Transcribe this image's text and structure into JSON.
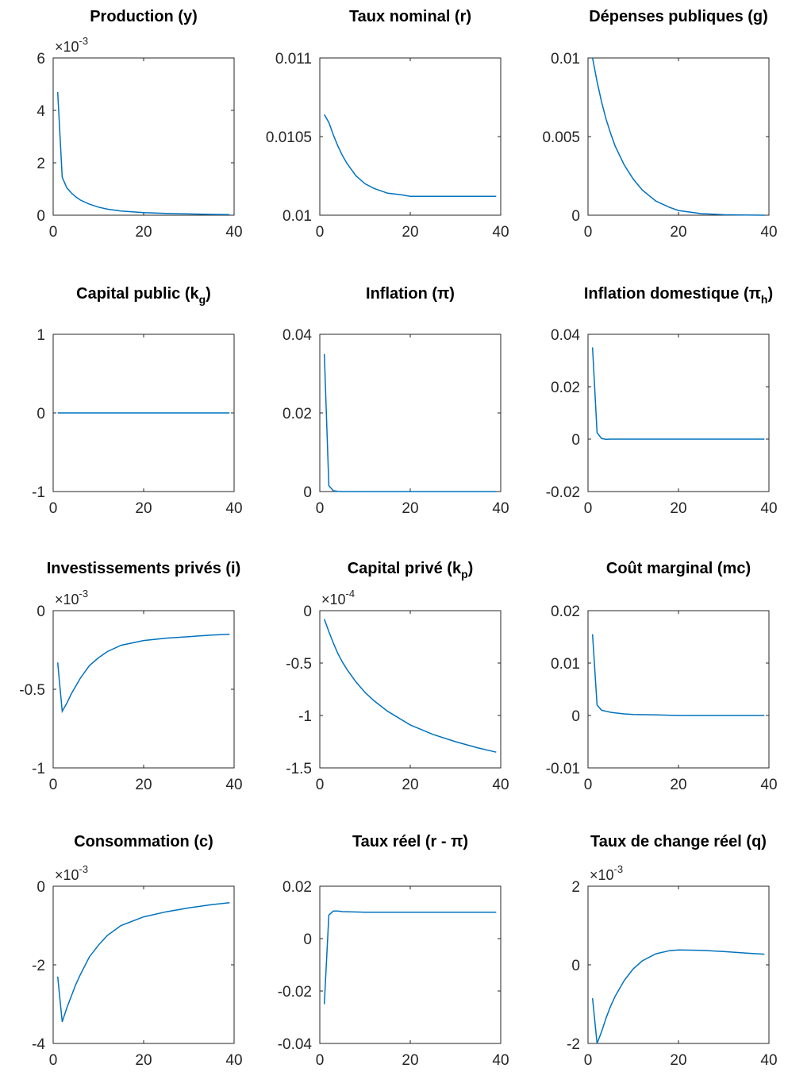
{
  "chart_data": [
    {
      "type": "line",
      "title": "Production (y)",
      "title_main": "Production (y)",
      "title_sub": "",
      "title_tail": "",
      "multiplier": {
        "base": "10",
        "exp": "-3"
      },
      "xlim": [
        0,
        40
      ],
      "ylim": [
        0,
        6
      ],
      "xticks": [
        0,
        20,
        40
      ],
      "yticks": [
        0,
        2,
        4,
        6
      ],
      "xtick_labels": [
        "0",
        "20",
        "40"
      ],
      "ytick_labels": [
        "0",
        "2",
        "4",
        "6"
      ],
      "series": [
        {
          "color": "#0072BD",
          "x": [
            1,
            2,
            3,
            4,
            5,
            6,
            8,
            10,
            12,
            15,
            20,
            25,
            30,
            35,
            39
          ],
          "y": [
            4.7,
            1.45,
            1.05,
            0.85,
            0.7,
            0.58,
            0.42,
            0.31,
            0.23,
            0.16,
            0.1,
            0.07,
            0.05,
            0.03,
            0.02
          ]
        }
      ]
    },
    {
      "type": "line",
      "title": "Taux nominal (r)",
      "title_main": "Taux nominal (r)",
      "title_sub": "",
      "title_tail": "",
      "multiplier": null,
      "xlim": [
        0,
        40
      ],
      "ylim": [
        0.01,
        0.011
      ],
      "xticks": [
        0,
        20,
        40
      ],
      "yticks": [
        0.01,
        0.0105,
        0.011
      ],
      "xtick_labels": [
        "0",
        "20",
        "40"
      ],
      "ytick_labels": [
        "0.01",
        "0.0105",
        "0.011"
      ],
      "series": [
        {
          "color": "#0072BD",
          "x": [
            1,
            2,
            3,
            4,
            5,
            6,
            7,
            8,
            10,
            12,
            15,
            18,
            20,
            25,
            30,
            35,
            39
          ],
          "y": [
            0.01064,
            0.01059,
            0.01051,
            0.01044,
            0.01038,
            0.01033,
            0.01029,
            0.01025,
            0.0102,
            0.01017,
            0.01014,
            0.01013,
            0.01012,
            0.01012,
            0.01012,
            0.01012,
            0.01012
          ]
        }
      ]
    },
    {
      "type": "line",
      "title": "Dépenses publiques (g)",
      "title_main": "Dépenses publiques (g)",
      "title_sub": "",
      "title_tail": "",
      "multiplier": null,
      "xlim": [
        0,
        40
      ],
      "ylim": [
        0,
        0.01
      ],
      "xticks": [
        0,
        20,
        40
      ],
      "yticks": [
        0,
        0.005,
        0.01
      ],
      "xtick_labels": [
        "0",
        "20",
        "40"
      ],
      "ytick_labels": [
        "0",
        "0.005",
        "0.01"
      ],
      "series": [
        {
          "color": "#0072BD",
          "x": [
            1,
            2,
            3,
            4,
            5,
            6,
            8,
            10,
            12,
            15,
            18,
            20,
            25,
            30,
            35,
            39
          ],
          "y": [
            0.01,
            0.0085,
            0.0072,
            0.0061,
            0.0052,
            0.0044,
            0.0032,
            0.0023,
            0.0016,
            0.0009,
            0.0005,
            0.0003,
            0.0001,
            3e-05,
            1e-05,
            0
          ]
        }
      ]
    },
    {
      "type": "line",
      "title": "Capital public (kg)",
      "title_main": "Capital public (k",
      "title_sub": "g",
      "title_tail": ")",
      "multiplier": null,
      "xlim": [
        0,
        40
      ],
      "ylim": [
        -1,
        1
      ],
      "xticks": [
        0,
        20,
        40
      ],
      "yticks": [
        -1,
        0,
        1
      ],
      "xtick_labels": [
        "0",
        "20",
        "40"
      ],
      "ytick_labels": [
        "-1",
        "0",
        "1"
      ],
      "series": [
        {
          "color": "#0072BD",
          "x": [
            1,
            39
          ],
          "y": [
            0,
            0
          ]
        }
      ]
    },
    {
      "type": "line",
      "title": "Inflation (π)",
      "title_main": "Inflation (π)",
      "title_sub": "",
      "title_tail": "",
      "multiplier": null,
      "xlim": [
        0,
        40
      ],
      "ylim": [
        0,
        0.04
      ],
      "xticks": [
        0,
        20,
        40
      ],
      "yticks": [
        0,
        0.02,
        0.04
      ],
      "xtick_labels": [
        "0",
        "20",
        "40"
      ],
      "ytick_labels": [
        "0",
        "0.02",
        "0.04"
      ],
      "series": [
        {
          "color": "#0072BD",
          "x": [
            1,
            2,
            3,
            4,
            5,
            10,
            20,
            30,
            39
          ],
          "y": [
            0.035,
            0.0015,
            0.0002,
            5e-05,
            0,
            0,
            0,
            0,
            0
          ]
        }
      ]
    },
    {
      "type": "line",
      "title": "Inflation domestique (πh)",
      "title_main": "Inflation domestique (π",
      "title_sub": "h",
      "title_tail": ")",
      "multiplier": null,
      "xlim": [
        0,
        40
      ],
      "ylim": [
        -0.02,
        0.04
      ],
      "xticks": [
        0,
        20,
        40
      ],
      "yticks": [
        -0.02,
        0,
        0.02,
        0.04
      ],
      "xtick_labels": [
        "0",
        "20",
        "40"
      ],
      "ytick_labels": [
        "-0.02",
        "0",
        "0.02",
        "0.04"
      ],
      "series": [
        {
          "color": "#0072BD",
          "x": [
            1,
            2,
            3,
            4,
            5,
            10,
            20,
            30,
            39
          ],
          "y": [
            0.035,
            0.0025,
            0.0002,
            -0.0001,
            0,
            0,
            0,
            0,
            0
          ]
        }
      ]
    },
    {
      "type": "line",
      "title": "Investissements privés (i)",
      "title_main": "Investissements privés (i)",
      "title_sub": "",
      "title_tail": "",
      "multiplier": {
        "base": "10",
        "exp": "-3"
      },
      "xlim": [
        0,
        40
      ],
      "ylim": [
        -1,
        0
      ],
      "xticks": [
        0,
        20,
        40
      ],
      "yticks": [
        -1,
        -0.5,
        0
      ],
      "xtick_labels": [
        "0",
        "20",
        "40"
      ],
      "ytick_labels": [
        "-1",
        "-0.5",
        "0"
      ],
      "series": [
        {
          "color": "#0072BD",
          "x": [
            1,
            2,
            3,
            4,
            5,
            6,
            8,
            10,
            12,
            15,
            20,
            25,
            30,
            35,
            39
          ],
          "y": [
            -0.33,
            -0.64,
            -0.59,
            -0.53,
            -0.48,
            -0.43,
            -0.35,
            -0.3,
            -0.26,
            -0.22,
            -0.19,
            -0.175,
            -0.165,
            -0.155,
            -0.15
          ]
        }
      ]
    },
    {
      "type": "line",
      "title": "Capital privé (kp)",
      "title_main": "Capital privé (k",
      "title_sub": "p",
      "title_tail": ")",
      "multiplier": {
        "base": "10",
        "exp": "-4"
      },
      "xlim": [
        0,
        40
      ],
      "ylim": [
        -1.5,
        0
      ],
      "xticks": [
        0,
        20,
        40
      ],
      "yticks": [
        -1.5,
        -1,
        -0.5,
        0
      ],
      "xtick_labels": [
        "0",
        "20",
        "40"
      ],
      "ytick_labels": [
        "-1.5",
        "-1",
        "-0.5",
        "0"
      ],
      "series": [
        {
          "color": "#0072BD",
          "x": [
            1,
            2,
            3,
            4,
            5,
            6,
            8,
            10,
            12,
            15,
            20,
            25,
            30,
            35,
            39
          ],
          "y": [
            -0.08,
            -0.2,
            -0.31,
            -0.41,
            -0.49,
            -0.56,
            -0.68,
            -0.78,
            -0.86,
            -0.96,
            -1.09,
            -1.18,
            -1.25,
            -1.31,
            -1.35
          ]
        }
      ]
    },
    {
      "type": "line",
      "title": "Coût marginal (mc)",
      "title_main": "Coût marginal (mc)",
      "title_sub": "",
      "title_tail": "",
      "multiplier": null,
      "xlim": [
        0,
        40
      ],
      "ylim": [
        -0.01,
        0.02
      ],
      "xticks": [
        0,
        20,
        40
      ],
      "yticks": [
        -0.01,
        0,
        0.01,
        0.02
      ],
      "xtick_labels": [
        "0",
        "20",
        "40"
      ],
      "ytick_labels": [
        "-0.01",
        "0",
        "0.01",
        "0.02"
      ],
      "series": [
        {
          "color": "#0072BD",
          "x": [
            1,
            2,
            3,
            4,
            5,
            6,
            8,
            10,
            15,
            20,
            30,
            39
          ],
          "y": [
            0.0155,
            0.002,
            0.001,
            0.0008,
            0.0006,
            0.0005,
            0.0003,
            0.0002,
            0.0001,
            0,
            0,
            0
          ]
        }
      ]
    },
    {
      "type": "line",
      "title": "Consommation (c)",
      "title_main": "Consommation (c)",
      "title_sub": "",
      "title_tail": "",
      "multiplier": {
        "base": "10",
        "exp": "-3"
      },
      "xlim": [
        0,
        40
      ],
      "ylim": [
        -4,
        0
      ],
      "xticks": [
        0,
        20,
        40
      ],
      "yticks": [
        -4,
        -2,
        0
      ],
      "xtick_labels": [
        "0",
        "20",
        "40"
      ],
      "ytick_labels": [
        "-4",
        "-2",
        "0"
      ],
      "series": [
        {
          "color": "#0072BD",
          "x": [
            1,
            2,
            3,
            4,
            5,
            6,
            8,
            10,
            12,
            15,
            20,
            25,
            30,
            35,
            39
          ],
          "y": [
            -2.3,
            -3.45,
            -3.1,
            -2.8,
            -2.5,
            -2.25,
            -1.8,
            -1.5,
            -1.25,
            -1.0,
            -0.78,
            -0.65,
            -0.55,
            -0.47,
            -0.42
          ]
        }
      ]
    },
    {
      "type": "line",
      "title": "Taux réel (r - π)",
      "title_main": "Taux réel (r - π)",
      "title_sub": "",
      "title_tail": "",
      "multiplier": null,
      "xlim": [
        0,
        40
      ],
      "ylim": [
        -0.04,
        0.02
      ],
      "xticks": [
        0,
        20,
        40
      ],
      "yticks": [
        -0.04,
        -0.02,
        0,
        0.02
      ],
      "xtick_labels": [
        "0",
        "20",
        "40"
      ],
      "ytick_labels": [
        "-0.04",
        "-0.02",
        "0",
        "0.02"
      ],
      "series": [
        {
          "color": "#0072BD",
          "x": [
            1,
            2,
            3,
            4,
            5,
            10,
            20,
            30,
            39
          ],
          "y": [
            -0.025,
            0.009,
            0.0105,
            0.0105,
            0.0103,
            0.0101,
            0.0101,
            0.0101,
            0.0101
          ]
        }
      ]
    },
    {
      "type": "line",
      "title": "Taux de change réel (q)",
      "title_main": "Taux de change réel (q)",
      "title_sub": "",
      "title_tail": "",
      "multiplier": {
        "base": "10",
        "exp": "-3"
      },
      "xlim": [
        0,
        40
      ],
      "ylim": [
        -2,
        2
      ],
      "xticks": [
        0,
        20,
        40
      ],
      "yticks": [
        -2,
        0,
        2
      ],
      "xtick_labels": [
        "0",
        "20",
        "40"
      ],
      "ytick_labels": [
        "-2",
        "0",
        "2"
      ],
      "series": [
        {
          "color": "#0072BD",
          "x": [
            1,
            2,
            3,
            4,
            5,
            6,
            8,
            10,
            12,
            15,
            18,
            20,
            25,
            30,
            35,
            39
          ],
          "y": [
            -0.85,
            -2.0,
            -1.7,
            -1.35,
            -1.05,
            -0.8,
            -0.4,
            -0.1,
            0.1,
            0.28,
            0.36,
            0.38,
            0.37,
            0.34,
            0.3,
            0.27
          ]
        }
      ]
    }
  ]
}
